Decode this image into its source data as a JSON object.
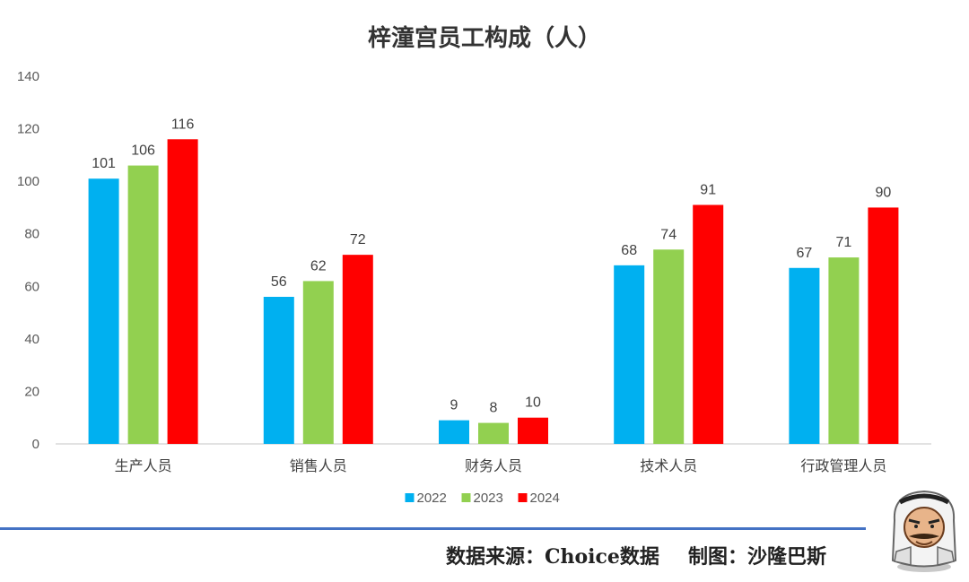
{
  "title": "梓潼宫员工构成（人）",
  "footer": {
    "source": "数据来源：Choice数据",
    "maker": "制图：沙隆巴斯"
  },
  "chart_data": {
    "type": "bar",
    "title": "梓潼宫员工构成（人）",
    "categories": [
      "生产人员",
      "销售人员",
      "财务人员",
      "技术人员",
      "行政管理人员"
    ],
    "series": [
      {
        "name": "2022",
        "color": "#00b0f0",
        "values": [
          101,
          56,
          9,
          68,
          67
        ]
      },
      {
        "name": "2023",
        "color": "#92d050",
        "values": [
          106,
          62,
          8,
          74,
          71
        ]
      },
      {
        "name": "2024",
        "color": "#ff0000",
        "values": [
          116,
          72,
          10,
          91,
          90
        ]
      }
    ],
    "ylim": [
      0,
      140
    ],
    "yticks": [
      0,
      20,
      40,
      60,
      80,
      100,
      120,
      140
    ],
    "grid": false,
    "legend": "bottom"
  }
}
